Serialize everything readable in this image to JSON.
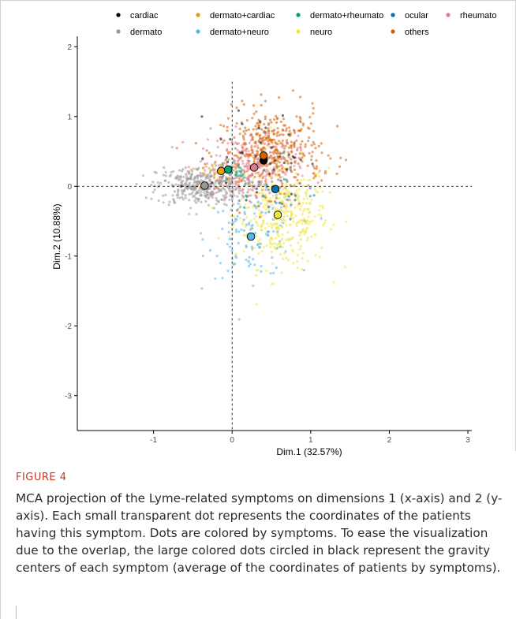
{
  "chart_data": {
    "type": "scatter",
    "xlabel": "Dim.1 (32.57%)",
    "ylabel": "Dim.2 (10.88%)",
    "xlim": [
      -1.97,
      3.05
    ],
    "ylim": [
      -3.5,
      2.15
    ],
    "xticks": [
      -1,
      0,
      1,
      2,
      3
    ],
    "xtick_labels": [
      "-1",
      "0",
      "1",
      "2",
      "3"
    ],
    "yticks": [
      -3,
      -2,
      -1,
      0,
      1,
      2
    ],
    "ytick_labels": [
      "-3",
      "-2",
      "-1",
      "0",
      "1",
      "2"
    ],
    "reference_lines": {
      "x": 0,
      "y": 0,
      "style": "dashed"
    },
    "grid": false,
    "legend_position": "top",
    "series": [
      {
        "name": "cardiac",
        "color": "#000000",
        "centroid": [
          0.4,
          0.37
        ],
        "cloud": {
          "center": [
            0.35,
            0.45
          ],
          "spread": [
            0.3,
            0.3
          ],
          "n": 40
        }
      },
      {
        "name": "dermato+cardiac",
        "color": "#E69F00",
        "centroid": [
          -0.14,
          0.22
        ],
        "cloud": {
          "center": [
            -0.1,
            0.2
          ],
          "spread": [
            0.15,
            0.1
          ],
          "n": 25
        }
      },
      {
        "name": "dermato+rheumato",
        "color": "#009E73",
        "centroid": [
          -0.05,
          0.24
        ],
        "cloud": {
          "center": [
            0.0,
            0.22
          ],
          "spread": [
            0.15,
            0.1
          ],
          "n": 25
        }
      },
      {
        "name": "ocular",
        "color": "#0072B2",
        "centroid": [
          0.55,
          -0.04
        ],
        "cloud": {
          "center": [
            0.55,
            -0.05
          ],
          "spread": [
            0.25,
            0.25
          ],
          "n": 30
        }
      },
      {
        "name": "rheumato",
        "color": "#E07A8F",
        "centroid": [
          0.28,
          0.27
        ],
        "cloud": {
          "center": [
            0.2,
            0.28
          ],
          "spread": [
            0.32,
            0.22
          ],
          "n": 260
        }
      },
      {
        "name": "dermato",
        "color": "#999999",
        "centroid": [
          -0.35,
          0.01
        ],
        "cloud": {
          "center": [
            -0.4,
            0.0
          ],
          "spread": [
            0.28,
            0.14
          ],
          "n": 380
        }
      },
      {
        "name": "dermato+neuro",
        "color": "#56B4E9",
        "centroid": [
          0.24,
          -0.72
        ],
        "cloud": {
          "center": [
            0.25,
            -0.7
          ],
          "spread": [
            0.28,
            0.3
          ],
          "n": 110
        }
      },
      {
        "name": "neuro",
        "color": "#F0E442",
        "centroid": [
          0.58,
          -0.41
        ],
        "cloud": {
          "center": [
            0.62,
            -0.4
          ],
          "spread": [
            0.3,
            0.38
          ],
          "n": 430
        }
      },
      {
        "name": "others",
        "color": "#D55E00",
        "centroid": [
          0.4,
          0.44
        ],
        "cloud": {
          "center": [
            0.5,
            0.5
          ],
          "spread": [
            0.32,
            0.3
          ],
          "n": 430
        }
      }
    ]
  },
  "caption": {
    "label": "FIGURE 4",
    "text": "MCA projection of the Lyme-related symptoms on dimensions 1 (x-axis) and 2 (y-axis). Each small transparent dot represents the coordinates of the patients having this symptom. Dots are colored by symptoms. To ease the visualization due to the overlap, the large colored dots circled in black represent the gravity centers of each symptom (average of the coordinates of patients by symptoms)."
  }
}
